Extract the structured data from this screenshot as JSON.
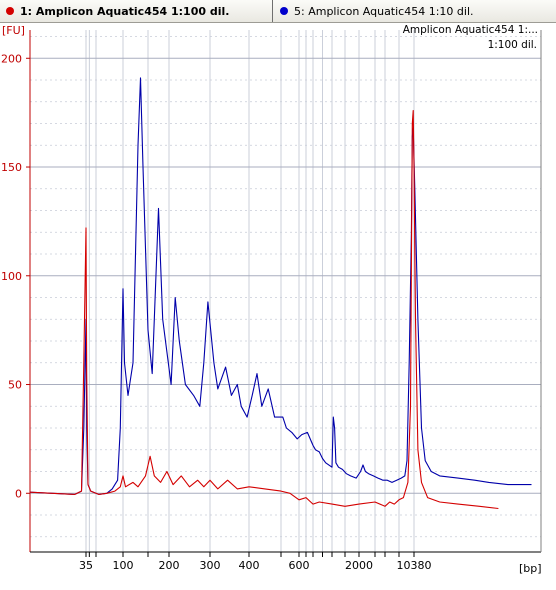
{
  "tabs": [
    {
      "label": "1: Amplicon Aquatic454 1:100 dil.",
      "color": "#d40000",
      "active": true
    },
    {
      "label": "5: Amplicon Aquatic454 1:10 dil.",
      "color": "#0000cc",
      "active": false
    }
  ],
  "chart_data": {
    "type": "line",
    "title": "",
    "ylabel": "[FU]",
    "xlabel": "[bp]",
    "ylim": [
      -27,
      213
    ],
    "yticks": [
      0,
      50,
      100,
      150,
      200
    ],
    "xticks": [
      "35",
      "100",
      "200",
      "300",
      "400",
      "600",
      "2000",
      "10380"
    ],
    "grid": true,
    "legend": "top-right",
    "legend_text": [
      "Amplicon Aquatic454 1:...",
      "1:100 dil."
    ],
    "colors": {
      "series1": "#d40000",
      "series2": "#0000aa",
      "grid": "#b8bcc8",
      "axis": "#c00000"
    },
    "series": [
      {
        "name": "Amplicon Aquatic454 1:100 dil.",
        "x_unit": "bp",
        "points": [
          [
            10,
            0.5
          ],
          [
            20,
            0
          ],
          [
            30,
            -0.5
          ],
          [
            33,
            1
          ],
          [
            34,
            60
          ],
          [
            35,
            122
          ],
          [
            36,
            55
          ],
          [
            38,
            4
          ],
          [
            42,
            1
          ],
          [
            55,
            -0.5
          ],
          [
            70,
            0
          ],
          [
            85,
            1
          ],
          [
            95,
            3
          ],
          [
            100,
            8
          ],
          [
            105,
            3
          ],
          [
            120,
            5
          ],
          [
            130,
            3
          ],
          [
            145,
            8
          ],
          [
            155,
            17
          ],
          [
            165,
            8
          ],
          [
            180,
            5
          ],
          [
            195,
            10
          ],
          [
            210,
            4
          ],
          [
            230,
            8
          ],
          [
            250,
            3
          ],
          [
            270,
            6
          ],
          [
            285,
            3
          ],
          [
            300,
            6
          ],
          [
            320,
            2
          ],
          [
            345,
            6
          ],
          [
            370,
            2
          ],
          [
            400,
            3
          ],
          [
            450,
            2
          ],
          [
            500,
            1
          ],
          [
            550,
            0
          ],
          [
            600,
            -3
          ],
          [
            650,
            -2
          ],
          [
            700,
            -5
          ],
          [
            800,
            -4
          ],
          [
            1000,
            -5
          ],
          [
            1500,
            -6
          ],
          [
            2000,
            -5
          ],
          [
            3000,
            -4
          ],
          [
            4000,
            -6
          ],
          [
            5000,
            -4
          ],
          [
            6000,
            -5
          ],
          [
            7000,
            -3
          ],
          [
            8000,
            -2
          ],
          [
            9000,
            5
          ],
          [
            9600,
            40
          ],
          [
            10000,
            170
          ],
          [
            10200,
            176
          ],
          [
            10380,
            150
          ],
          [
            10500,
            80
          ],
          [
            10700,
            20
          ],
          [
            11000,
            5
          ],
          [
            11500,
            -2
          ],
          [
            12500,
            -4
          ],
          [
            14000,
            -5
          ],
          [
            17000,
            -6
          ],
          [
            21000,
            -7
          ]
        ]
      },
      {
        "name": "Amplicon Aquatic454 1:10 dil.",
        "x_unit": "bp",
        "points": [
          [
            10,
            0.5
          ],
          [
            20,
            0
          ],
          [
            30,
            -0.5
          ],
          [
            33,
            1
          ],
          [
            34,
            30
          ],
          [
            35,
            80
          ],
          [
            36,
            30
          ],
          [
            38,
            4
          ],
          [
            42,
            1
          ],
          [
            55,
            -0.5
          ],
          [
            70,
            0
          ],
          [
            80,
            2
          ],
          [
            90,
            6
          ],
          [
            95,
            30
          ],
          [
            100,
            94
          ],
          [
            103,
            60
          ],
          [
            110,
            45
          ],
          [
            120,
            60
          ],
          [
            125,
            110
          ],
          [
            130,
            160
          ],
          [
            135,
            191
          ],
          [
            140,
            150
          ],
          [
            150,
            75
          ],
          [
            160,
            55
          ],
          [
            165,
            80
          ],
          [
            175,
            131
          ],
          [
            185,
            80
          ],
          [
            195,
            65
          ],
          [
            205,
            50
          ],
          [
            215,
            90
          ],
          [
            225,
            70
          ],
          [
            240,
            50
          ],
          [
            260,
            45
          ],
          [
            275,
            40
          ],
          [
            285,
            60
          ],
          [
            295,
            88
          ],
          [
            310,
            60
          ],
          [
            320,
            48
          ],
          [
            340,
            58
          ],
          [
            355,
            45
          ],
          [
            370,
            50
          ],
          [
            380,
            40
          ],
          [
            395,
            35
          ],
          [
            410,
            45
          ],
          [
            425,
            55
          ],
          [
            440,
            40
          ],
          [
            460,
            48
          ],
          [
            480,
            35
          ],
          [
            510,
            35
          ],
          [
            530,
            30
          ],
          [
            560,
            28
          ],
          [
            590,
            25
          ],
          [
            620,
            27
          ],
          [
            660,
            28
          ],
          [
            700,
            22
          ],
          [
            740,
            20
          ],
          [
            800,
            19
          ],
          [
            850,
            16
          ],
          [
            900,
            14
          ],
          [
            1000,
            12
          ],
          [
            1050,
            35
          ],
          [
            1100,
            30
          ],
          [
            1150,
            14
          ],
          [
            1250,
            12
          ],
          [
            1400,
            11
          ],
          [
            1550,
            9
          ],
          [
            1700,
            8
          ],
          [
            1900,
            7
          ],
          [
            2100,
            10
          ],
          [
            2250,
            13
          ],
          [
            2400,
            10
          ],
          [
            2600,
            9
          ],
          [
            2900,
            8
          ],
          [
            3300,
            7
          ],
          [
            3800,
            6
          ],
          [
            4500,
            6
          ],
          [
            5500,
            5
          ],
          [
            6500,
            6
          ],
          [
            7500,
            7
          ],
          [
            8300,
            8
          ],
          [
            8800,
            15
          ],
          [
            9300,
            60
          ],
          [
            9800,
            120
          ],
          [
            10000,
            164
          ],
          [
            10200,
            168
          ],
          [
            10450,
            140
          ],
          [
            10700,
            80
          ],
          [
            11000,
            30
          ],
          [
            11300,
            15
          ],
          [
            11800,
            10
          ],
          [
            12500,
            8
          ],
          [
            14000,
            7
          ],
          [
            16000,
            6
          ],
          [
            19000,
            5
          ],
          [
            23000,
            4
          ],
          [
            28000,
            4
          ]
        ]
      }
    ]
  }
}
